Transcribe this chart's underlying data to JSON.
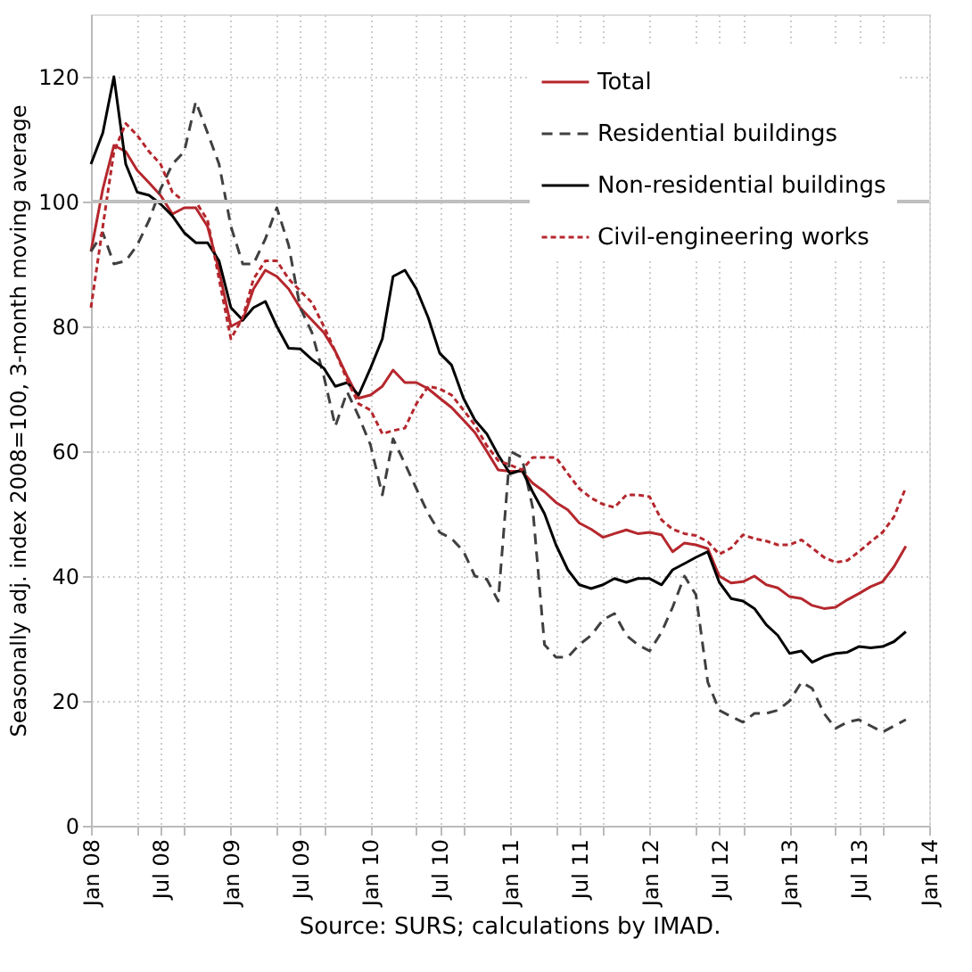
{
  "chart_data": {
    "type": "line",
    "ylabel": "Seasonally adj. index 2008=100, 3-month moving average",
    "annotations": [
      "Source: SURS; calculations by IMAD."
    ],
    "x": [
      "2008-01",
      "2008-02",
      "2008-03",
      "2008-04",
      "2008-05",
      "2008-06",
      "2008-07",
      "2008-08",
      "2008-09",
      "2008-10",
      "2008-11",
      "2008-12",
      "2009-01",
      "2009-02",
      "2009-03",
      "2009-04",
      "2009-05",
      "2009-06",
      "2009-07",
      "2009-08",
      "2009-09",
      "2009-10",
      "2009-11",
      "2009-12",
      "2010-01",
      "2010-02",
      "2010-03",
      "2010-04",
      "2010-05",
      "2010-06",
      "2010-07",
      "2010-08",
      "2010-09",
      "2010-10",
      "2010-11",
      "2010-12",
      "2011-01",
      "2011-02",
      "2011-03",
      "2011-04",
      "2011-05",
      "2011-06",
      "2011-07",
      "2011-08",
      "2011-09",
      "2011-10",
      "2011-11",
      "2011-12",
      "2012-01",
      "2012-02",
      "2012-03",
      "2012-04",
      "2012-05",
      "2012-06",
      "2012-07",
      "2012-08",
      "2012-09",
      "2012-10",
      "2012-11",
      "2012-12",
      "2013-01",
      "2013-02",
      "2013-03",
      "2013-04",
      "2013-05",
      "2013-06",
      "2013-07",
      "2013-08",
      "2013-09",
      "2013-10",
      "2013-11"
    ],
    "series": [
      {
        "name": "Total",
        "color": "#b5272d",
        "line_style": "solid",
        "values": [
          92,
          102,
          109,
          108,
          105,
          103,
          101,
          98,
          99,
          99,
          96,
          89,
          80,
          81,
          86,
          89,
          88,
          86,
          83,
          81,
          79,
          76,
          72,
          68.5,
          69,
          70.4,
          73,
          71,
          71,
          70,
          68.5,
          67,
          65,
          63,
          60,
          57,
          56.8,
          56.8,
          54.9,
          53.5,
          51.8,
          50.6,
          48.5,
          47.5,
          46.2,
          46.8,
          47.4,
          46.8,
          47,
          46.6,
          43.9,
          45.3,
          45,
          44.4,
          40,
          38.9,
          39.1,
          40,
          38.6,
          38.1,
          36.7,
          36.4,
          35.3,
          34.8,
          35,
          36.2,
          37.2,
          38.3,
          39.1,
          41.5,
          44.8
        ]
      },
      {
        "name": "Residential buildings",
        "color": "#404040",
        "line_style": "dashed",
        "values": [
          92,
          95,
          90,
          90.5,
          93,
          97,
          102,
          106,
          108,
          116,
          111,
          106,
          96,
          90,
          90,
          94,
          99,
          93,
          83,
          79,
          72,
          64,
          69.5,
          65.6,
          61,
          53,
          62,
          58,
          54,
          50,
          47,
          46,
          44,
          40,
          39.5,
          36,
          60,
          59,
          51,
          29,
          27,
          27,
          29,
          30.5,
          33,
          34,
          30.5,
          29,
          28,
          31,
          35,
          40,
          37,
          23,
          18.5,
          17.5,
          16.6,
          18,
          18,
          18.5,
          20,
          23,
          22,
          18,
          15.6,
          16.6,
          17,
          16,
          15,
          16,
          17
        ]
      },
      {
        "name": "Non-residential buildings",
        "color": "#000000",
        "line_style": "solid",
        "values": [
          106,
          111,
          120,
          106,
          101.5,
          101,
          99.6,
          97.7,
          95,
          93.4,
          93.4,
          90.5,
          83,
          81,
          83,
          84,
          80,
          76.5,
          76.4,
          74.7,
          73.3,
          70.4,
          71,
          69,
          73.3,
          78,
          88,
          89,
          86,
          81.4,
          75.7,
          73.8,
          68.5,
          65,
          62.8,
          59.4,
          56.4,
          57,
          53.5,
          50,
          45,
          41,
          38.6,
          38,
          38.6,
          39.6,
          39,
          39.6,
          39.6,
          38.6,
          41,
          42,
          43,
          43.9,
          39,
          36.4,
          36,
          34.8,
          32.2,
          30.5,
          27.6,
          28,
          26.2,
          27.1,
          27.6,
          27.8,
          28.7,
          28.5,
          28.7,
          29.5,
          31.1
        ]
      },
      {
        "name": "Civil-engineering works",
        "color": "#b5272d",
        "line_style": "dotted",
        "values": [
          83,
          96,
          108,
          112.5,
          110.6,
          108,
          106,
          101.5,
          100,
          100,
          97,
          87.6,
          78,
          81.4,
          87.6,
          90.5,
          90.5,
          87.6,
          85.7,
          83.8,
          80,
          76,
          71.4,
          67.6,
          66.6,
          62.8,
          63.3,
          63.7,
          67.6,
          70.4,
          70,
          69,
          66.6,
          64.2,
          60.9,
          58.5,
          57.8,
          57,
          59,
          59,
          59,
          56.4,
          54,
          52.5,
          51.5,
          51,
          53,
          53,
          52.7,
          49,
          47.5,
          46.8,
          46.5,
          45.5,
          43.5,
          44.5,
          46.6,
          46,
          45.6,
          45,
          45,
          45.8,
          44.5,
          43,
          42.2,
          42.5,
          43.9,
          45.5,
          47,
          49.5,
          54.2
        ]
      }
    ],
    "xlim": [
      "2008-01",
      "2014-01"
    ],
    "xticks": [
      {
        "value": "2008-01",
        "label": "Jan 08"
      },
      {
        "value": "2008-05",
        "label": null
      },
      {
        "value": "2008-07",
        "label": "Jul 08"
      },
      {
        "value": "2008-09",
        "label": null
      },
      {
        "value": "2009-01",
        "label": "Jan 09"
      },
      {
        "value": "2009-05",
        "label": null
      },
      {
        "value": "2009-07",
        "label": "Jul 09"
      },
      {
        "value": "2009-09",
        "label": null
      },
      {
        "value": "2010-01",
        "label": "Jan 10"
      },
      {
        "value": "2010-05",
        "label": null
      },
      {
        "value": "2010-07",
        "label": "Jul 10"
      },
      {
        "value": "2010-09",
        "label": null
      },
      {
        "value": "2011-01",
        "label": "Jan 11"
      },
      {
        "value": "2011-05",
        "label": null
      },
      {
        "value": "2011-07",
        "label": "Jul 11"
      },
      {
        "value": "2011-09",
        "label": null
      },
      {
        "value": "2012-01",
        "label": "Jan 12"
      },
      {
        "value": "2012-05",
        "label": null
      },
      {
        "value": "2012-07",
        "label": "Jul 12"
      },
      {
        "value": "2012-09",
        "label": null
      },
      {
        "value": "2013-01",
        "label": "Jan 13"
      },
      {
        "value": "2013-05",
        "label": null
      },
      {
        "value": "2013-07",
        "label": "Jul 13"
      },
      {
        "value": "2013-09",
        "label": null
      },
      {
        "value": "2014-01",
        "label": "Jan 14"
      }
    ],
    "ylim": [
      0,
      130
    ],
    "yticks": [
      0,
      20,
      40,
      60,
      80,
      100,
      120
    ],
    "ref_lines": [
      {
        "axis": "y",
        "value": 100,
        "color": "#bfbfbf",
        "line_style": "solid"
      }
    ],
    "grid": true,
    "legend": "top right"
  }
}
